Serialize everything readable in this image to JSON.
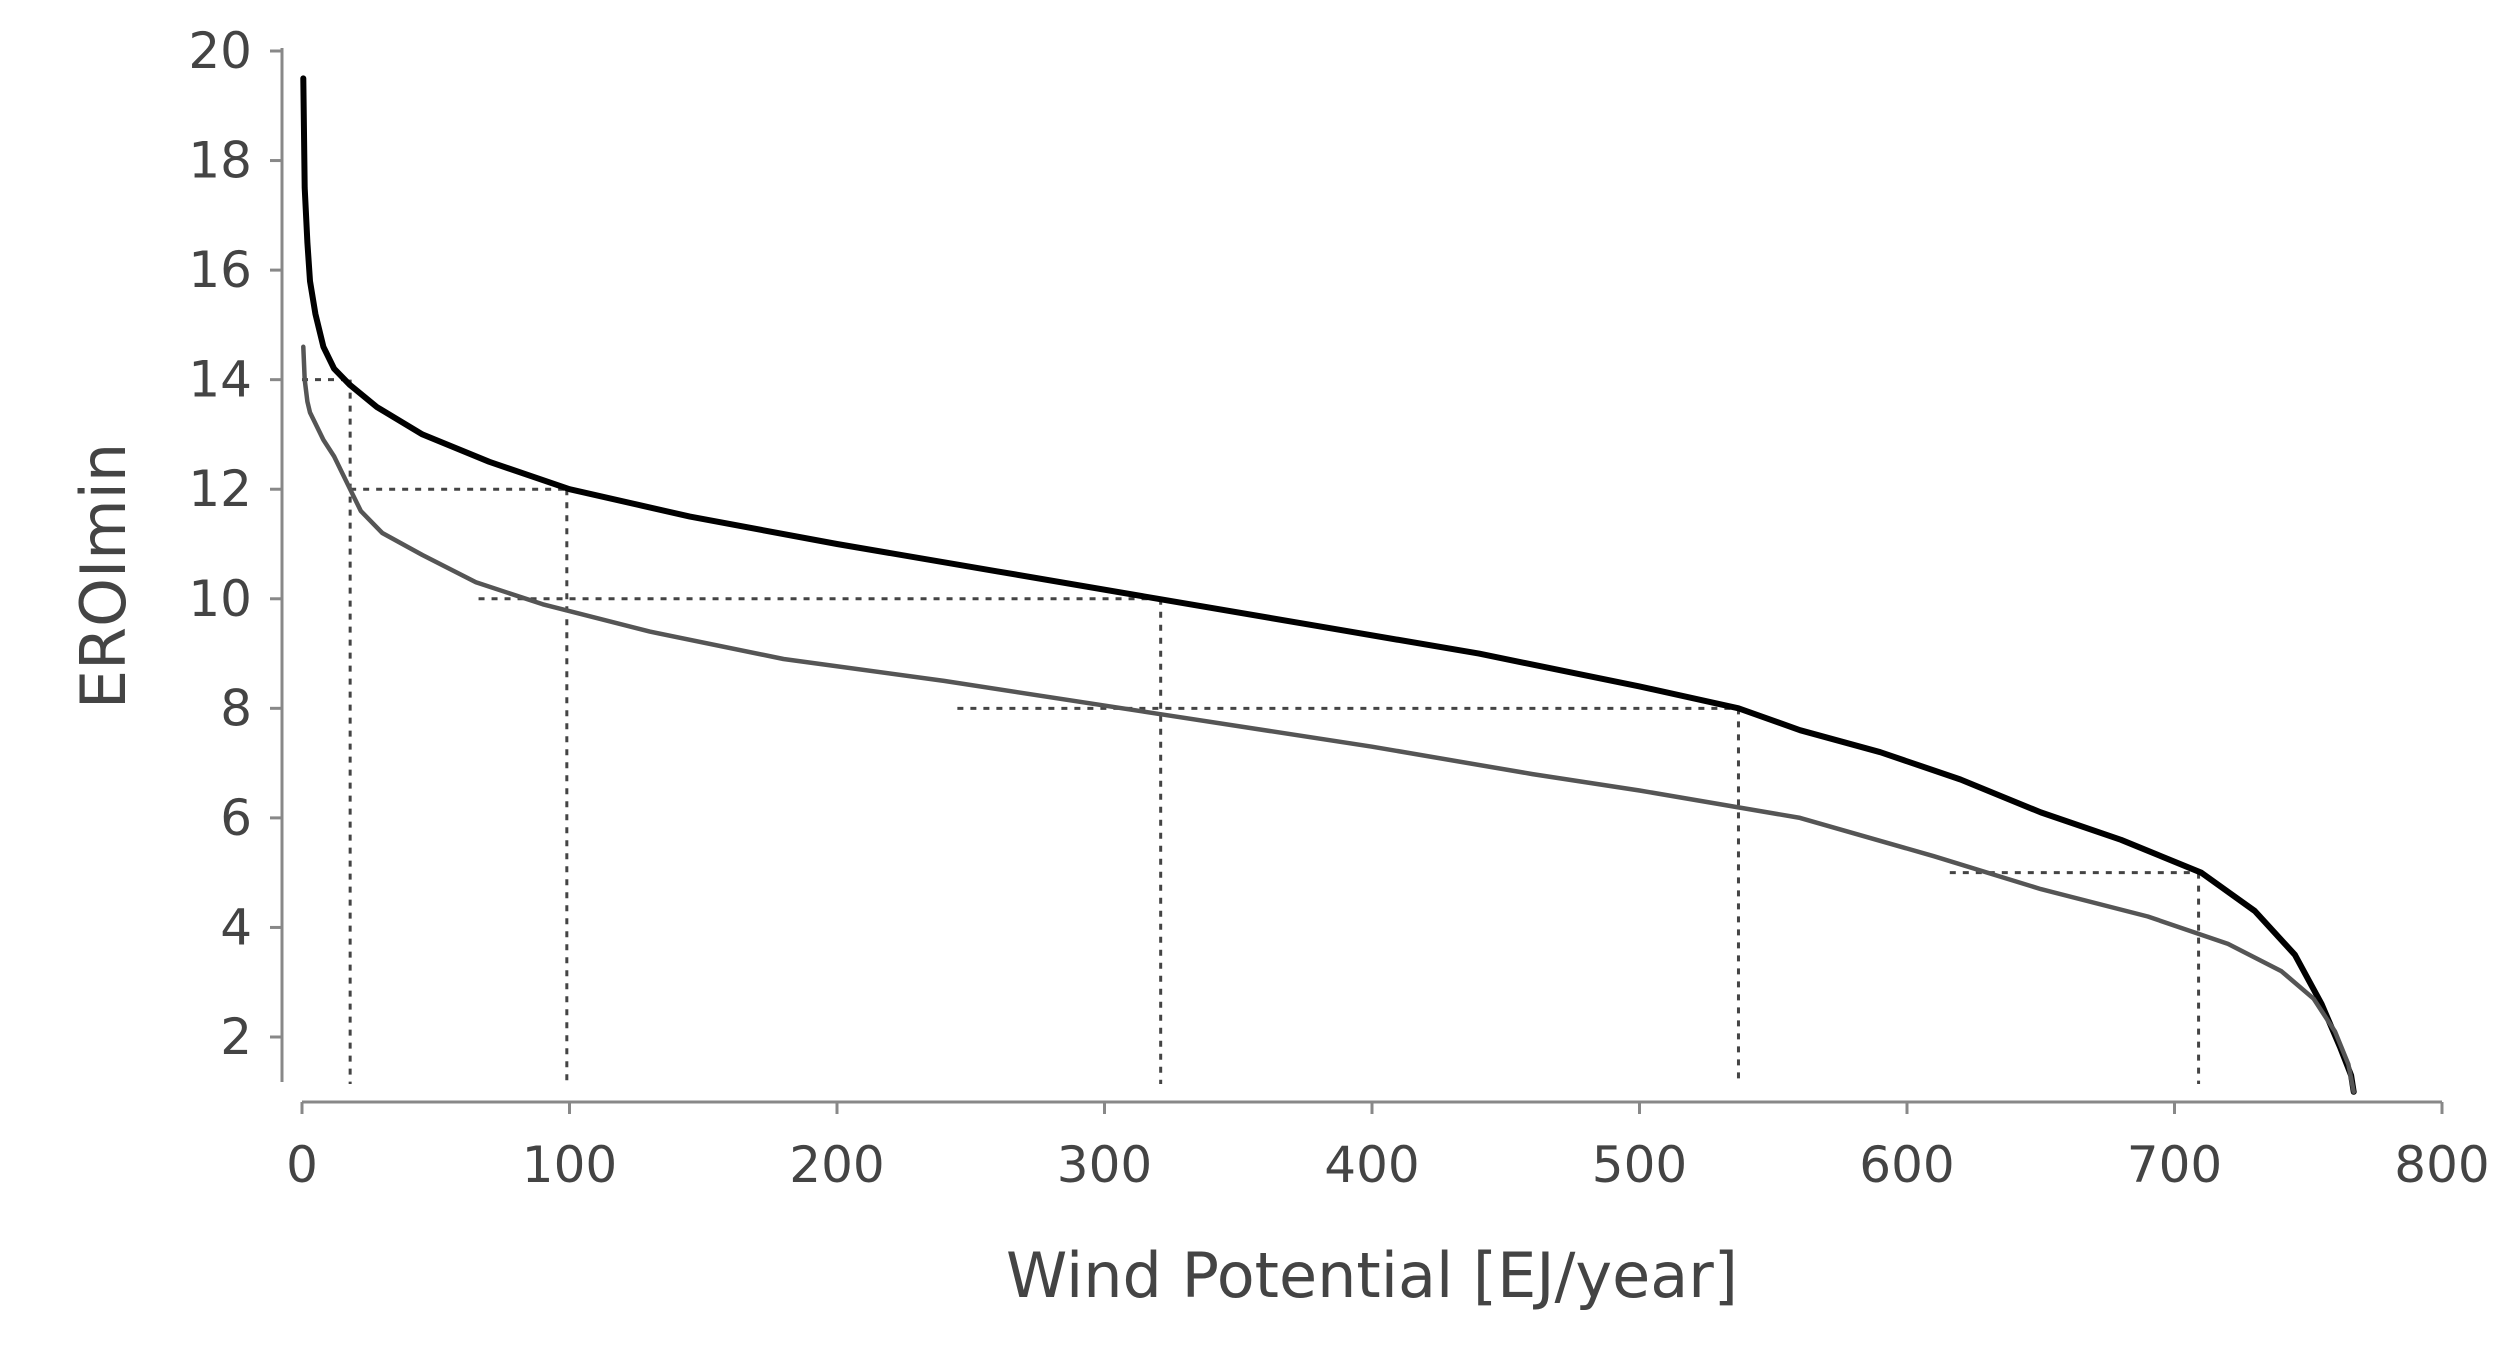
{
  "chart_data": {
    "type": "line",
    "title": "",
    "xlabel": "Wind Potential [EJ/year]",
    "ylabel": "EROImin",
    "xlim": [
      0,
      800
    ],
    "ylim": [
      1,
      20
    ],
    "x_ticks": [
      0,
      100,
      200,
      300,
      400,
      500,
      600,
      700,
      800
    ],
    "x_tick_labels": [
      "0",
      "100",
      "200",
      "300",
      "400",
      "500",
      "600",
      "700",
      "800"
    ],
    "y_ticks": [
      2,
      4,
      6,
      8,
      10,
      12,
      14,
      16,
      18,
      20
    ],
    "y_tick_labels": [
      "2",
      "4",
      "6",
      "8",
      "10",
      "12",
      "14",
      "16",
      "18",
      "20"
    ],
    "grid": false,
    "legend": false,
    "series": [
      {
        "color": "#000000",
        "x": [
          0.5,
          1,
          2,
          3,
          5,
          8,
          12,
          18,
          28,
          45,
          70,
          100,
          145,
          200,
          260,
          320,
          380,
          440,
          500,
          537,
          560,
          590,
          620,
          650,
          680,
          710,
          730,
          745,
          755,
          762,
          766,
          767
        ],
        "y": [
          19.5,
          17.5,
          16.5,
          15.8,
          15.2,
          14.6,
          14.2,
          13.9,
          13.5,
          13.0,
          12.5,
          12.0,
          11.5,
          11.0,
          10.5,
          10.0,
          9.5,
          9.0,
          8.4,
          8.0,
          7.6,
          7.2,
          6.7,
          6.1,
          5.6,
          5.0,
          4.3,
          3.5,
          2.6,
          1.8,
          1.3,
          1.0
        ]
      },
      {
        "color": "#555555",
        "x": [
          0.5,
          1,
          2,
          3,
          5,
          8,
          12,
          18,
          22,
          30,
          45,
          65,
          90,
          130,
          180,
          240,
          320,
          400,
          460,
          500,
          560,
          610,
          650,
          690,
          720,
          740,
          752,
          760,
          765,
          767
        ],
        "y": [
          14.6,
          14.0,
          13.6,
          13.4,
          13.2,
          12.9,
          12.6,
          12.0,
          11.6,
          11.2,
          10.8,
          10.3,
          9.9,
          9.4,
          8.9,
          8.5,
          7.9,
          7.3,
          6.8,
          6.5,
          6.0,
          5.3,
          4.7,
          4.2,
          3.7,
          3.2,
          2.7,
          2.1,
          1.5,
          1.0
        ]
      }
    ],
    "reference_lines": [
      {
        "x_start": 0,
        "x_end": 18,
        "y": 14
      },
      {
        "x_start": 18,
        "x_end": 99,
        "y": 12
      },
      {
        "x_start": 66,
        "x_end": 321,
        "y": 10
      },
      {
        "x_start": 245,
        "x_end": 537,
        "y": 8
      },
      {
        "x_start": 616,
        "x_end": 709,
        "y": 5
      },
      {
        "x": 18,
        "y_top": 14
      },
      {
        "x": 99,
        "y_top": 12
      },
      {
        "x": 321,
        "y_top": 10
      },
      {
        "x": 537,
        "y_top": 8
      },
      {
        "x": 709,
        "y_top": 5
      }
    ]
  }
}
